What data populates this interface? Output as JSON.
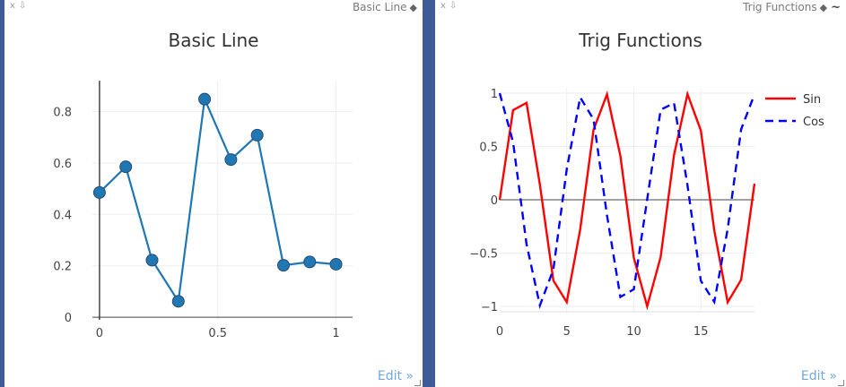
{
  "left_panel": {
    "header_label": "Basic Line",
    "edit_label": "Edit »"
  },
  "right_panel": {
    "header_label": "Trig Functions",
    "edit_label": "Edit »"
  },
  "header_icons": [
    "close-icon",
    "pin-icon"
  ],
  "colors": {
    "basic_line": "#1f77b4",
    "basic_marker_edge": "#2b4b6f",
    "sin": "#ff0000",
    "cos": "#0000ff",
    "frame_blue": "#3d5a99"
  },
  "chart_data": [
    {
      "type": "line",
      "title": "Basic Line",
      "x": [
        0,
        0.1111,
        0.2222,
        0.3333,
        0.4444,
        0.5556,
        0.6667,
        0.7778,
        0.8889,
        1.0
      ],
      "series": [
        {
          "values": [
            0.485,
            0.585,
            0.222,
            0.062,
            0.848,
            0.613,
            0.708,
            0.202,
            0.215,
            0.206
          ],
          "markers": true
        }
      ],
      "xticks": [
        "0",
        "0.5",
        "1"
      ],
      "yticks": [
        "0",
        "0.2",
        "0.4",
        "0.6",
        "0.8"
      ],
      "xlim": [
        -0.03,
        1.07
      ],
      "ylim": [
        -0.01,
        0.92
      ],
      "grid": true
    },
    {
      "type": "line",
      "title": "Trig Functions",
      "x": [
        0,
        1,
        2,
        3,
        4,
        5,
        6,
        7,
        8,
        9,
        10,
        11,
        12,
        13,
        14,
        15,
        16,
        17,
        18,
        19
      ],
      "series": [
        {
          "name": "Sin",
          "dash": "solid",
          "values": [
            0,
            0.841,
            0.909,
            0.141,
            -0.757,
            -0.959,
            -0.279,
            0.657,
            0.989,
            0.412,
            -0.544,
            -1.0,
            -0.537,
            0.42,
            0.991,
            0.65,
            -0.288,
            -0.961,
            -0.751,
            0.15
          ]
        },
        {
          "name": "Cos",
          "dash": "dash",
          "values": [
            1,
            0.54,
            -0.416,
            -0.99,
            -0.654,
            0.284,
            0.96,
            0.754,
            -0.146,
            -0.911,
            -0.839,
            0.004,
            0.844,
            0.907,
            0.137,
            -0.76,
            -0.958,
            -0.275,
            0.66,
            0.989
          ]
        }
      ],
      "xticks": [
        "0",
        "5",
        "10",
        "15"
      ],
      "yticks": [
        "−1",
        "−0.5",
        "0",
        "0.5",
        "1"
      ],
      "xlim": [
        0,
        19
      ],
      "ylim": [
        -1.05,
        1.05
      ],
      "legend_position": "top-right",
      "grid": true
    }
  ]
}
